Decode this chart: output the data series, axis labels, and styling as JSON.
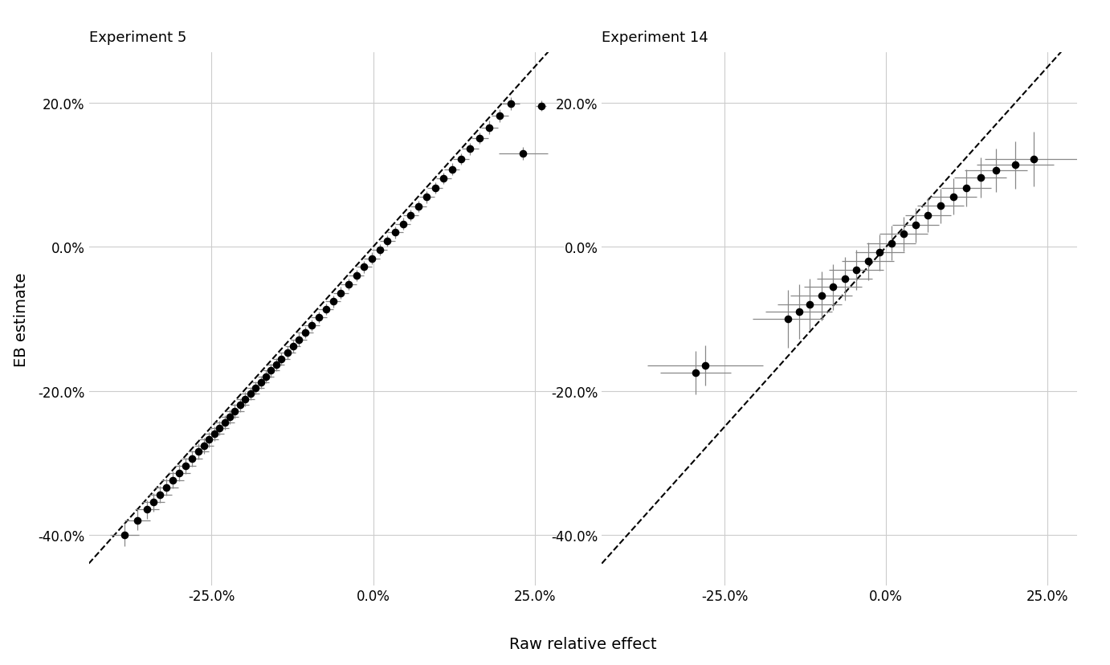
{
  "exp5": {
    "title": "Experiment 5",
    "raw": [
      -0.385,
      -0.365,
      -0.35,
      -0.34,
      -0.33,
      -0.32,
      -0.31,
      -0.3,
      -0.29,
      -0.28,
      -0.27,
      -0.262,
      -0.254,
      -0.246,
      -0.238,
      -0.23,
      -0.222,
      -0.214,
      -0.206,
      -0.198,
      -0.19,
      -0.182,
      -0.174,
      -0.166,
      -0.158,
      -0.15,
      -0.142,
      -0.133,
      -0.124,
      -0.115,
      -0.105,
      -0.095,
      -0.084,
      -0.073,
      -0.062,
      -0.05,
      -0.038,
      -0.026,
      -0.014,
      -0.002,
      0.01,
      0.022,
      0.034,
      0.046,
      0.058,
      0.07,
      0.083,
      0.096,
      0.109,
      0.122,
      0.136,
      0.15,
      0.165,
      0.18,
      0.196,
      0.213,
      0.232,
      0.26
    ],
    "eb": [
      -0.4,
      -0.38,
      -0.365,
      -0.355,
      -0.344,
      -0.334,
      -0.324,
      -0.314,
      -0.304,
      -0.294,
      -0.284,
      -0.276,
      -0.268,
      -0.26,
      -0.252,
      -0.244,
      -0.236,
      -0.228,
      -0.22,
      -0.212,
      -0.204,
      -0.196,
      -0.188,
      -0.18,
      -0.172,
      -0.164,
      -0.156,
      -0.147,
      -0.138,
      -0.129,
      -0.119,
      -0.109,
      -0.098,
      -0.087,
      -0.076,
      -0.064,
      -0.052,
      -0.04,
      -0.028,
      -0.016,
      -0.004,
      0.008,
      0.02,
      0.032,
      0.044,
      0.056,
      0.069,
      0.082,
      0.095,
      0.108,
      0.122,
      0.136,
      0.151,
      0.166,
      0.182,
      0.199,
      0.13,
      0.196
    ],
    "xerr": [
      0.022,
      0.02,
      0.019,
      0.018,
      0.018,
      0.018,
      0.017,
      0.017,
      0.016,
      0.016,
      0.016,
      0.015,
      0.015,
      0.015,
      0.015,
      0.015,
      0.014,
      0.014,
      0.014,
      0.014,
      0.014,
      0.013,
      0.013,
      0.013,
      0.013,
      0.013,
      0.013,
      0.013,
      0.012,
      0.012,
      0.012,
      0.012,
      0.012,
      0.012,
      0.012,
      0.012,
      0.012,
      0.012,
      0.012,
      0.012,
      0.012,
      0.012,
      0.012,
      0.012,
      0.012,
      0.012,
      0.012,
      0.012,
      0.012,
      0.012,
      0.012,
      0.013,
      0.013,
      0.013,
      0.013,
      0.014,
      0.038,
      0.008
    ],
    "yerr": [
      0.016,
      0.014,
      0.013,
      0.013,
      0.012,
      0.012,
      0.012,
      0.012,
      0.011,
      0.011,
      0.011,
      0.011,
      0.011,
      0.01,
      0.01,
      0.01,
      0.01,
      0.01,
      0.01,
      0.01,
      0.009,
      0.009,
      0.009,
      0.009,
      0.009,
      0.009,
      0.009,
      0.009,
      0.009,
      0.009,
      0.008,
      0.008,
      0.008,
      0.008,
      0.008,
      0.008,
      0.008,
      0.008,
      0.008,
      0.008,
      0.008,
      0.008,
      0.008,
      0.008,
      0.008,
      0.008,
      0.008,
      0.008,
      0.008,
      0.008,
      0.008,
      0.008,
      0.008,
      0.009,
      0.009,
      0.009,
      0.009,
      0.007
    ]
  },
  "exp14": {
    "title": "Experiment 14",
    "raw": [
      -0.295,
      -0.28,
      -0.152,
      -0.135,
      -0.118,
      -0.1,
      -0.082,
      -0.064,
      -0.046,
      -0.028,
      -0.01,
      0.008,
      0.027,
      0.046,
      0.065,
      0.084,
      0.104,
      0.124,
      0.146,
      0.17,
      0.2,
      0.228
    ],
    "eb": [
      -0.175,
      -0.165,
      -0.1,
      -0.09,
      -0.08,
      -0.068,
      -0.056,
      -0.044,
      -0.032,
      -0.02,
      -0.008,
      0.005,
      0.018,
      0.03,
      0.044,
      0.057,
      0.07,
      0.082,
      0.096,
      0.106,
      0.114,
      0.122
    ],
    "xerr": [
      0.055,
      0.09,
      0.055,
      0.052,
      0.05,
      0.048,
      0.045,
      0.043,
      0.042,
      0.04,
      0.038,
      0.038,
      0.037,
      0.036,
      0.036,
      0.036,
      0.036,
      0.038,
      0.04,
      0.048,
      0.06,
      0.075
    ],
    "yerr": [
      0.03,
      0.028,
      0.04,
      0.038,
      0.036,
      0.034,
      0.032,
      0.03,
      0.028,
      0.026,
      0.025,
      0.024,
      0.024,
      0.024,
      0.024,
      0.024,
      0.025,
      0.026,
      0.028,
      0.03,
      0.033,
      0.038
    ]
  },
  "xlim1": [
    -0.44,
    0.295
  ],
  "xlim2": [
    -0.44,
    0.295
  ],
  "ylim": [
    -0.47,
    0.27
  ],
  "xticks": [
    -0.25,
    0.0,
    0.25
  ],
  "yticks": [
    -0.4,
    -0.2,
    0.0,
    0.2
  ],
  "xlabel": "Raw relative effect",
  "ylabel": "EB estimate",
  "background_color": "#ffffff",
  "grid_color": "#cccccc",
  "point_color": "#000000",
  "errorbar_color": "#888888",
  "dashed_line_color": "#000000"
}
